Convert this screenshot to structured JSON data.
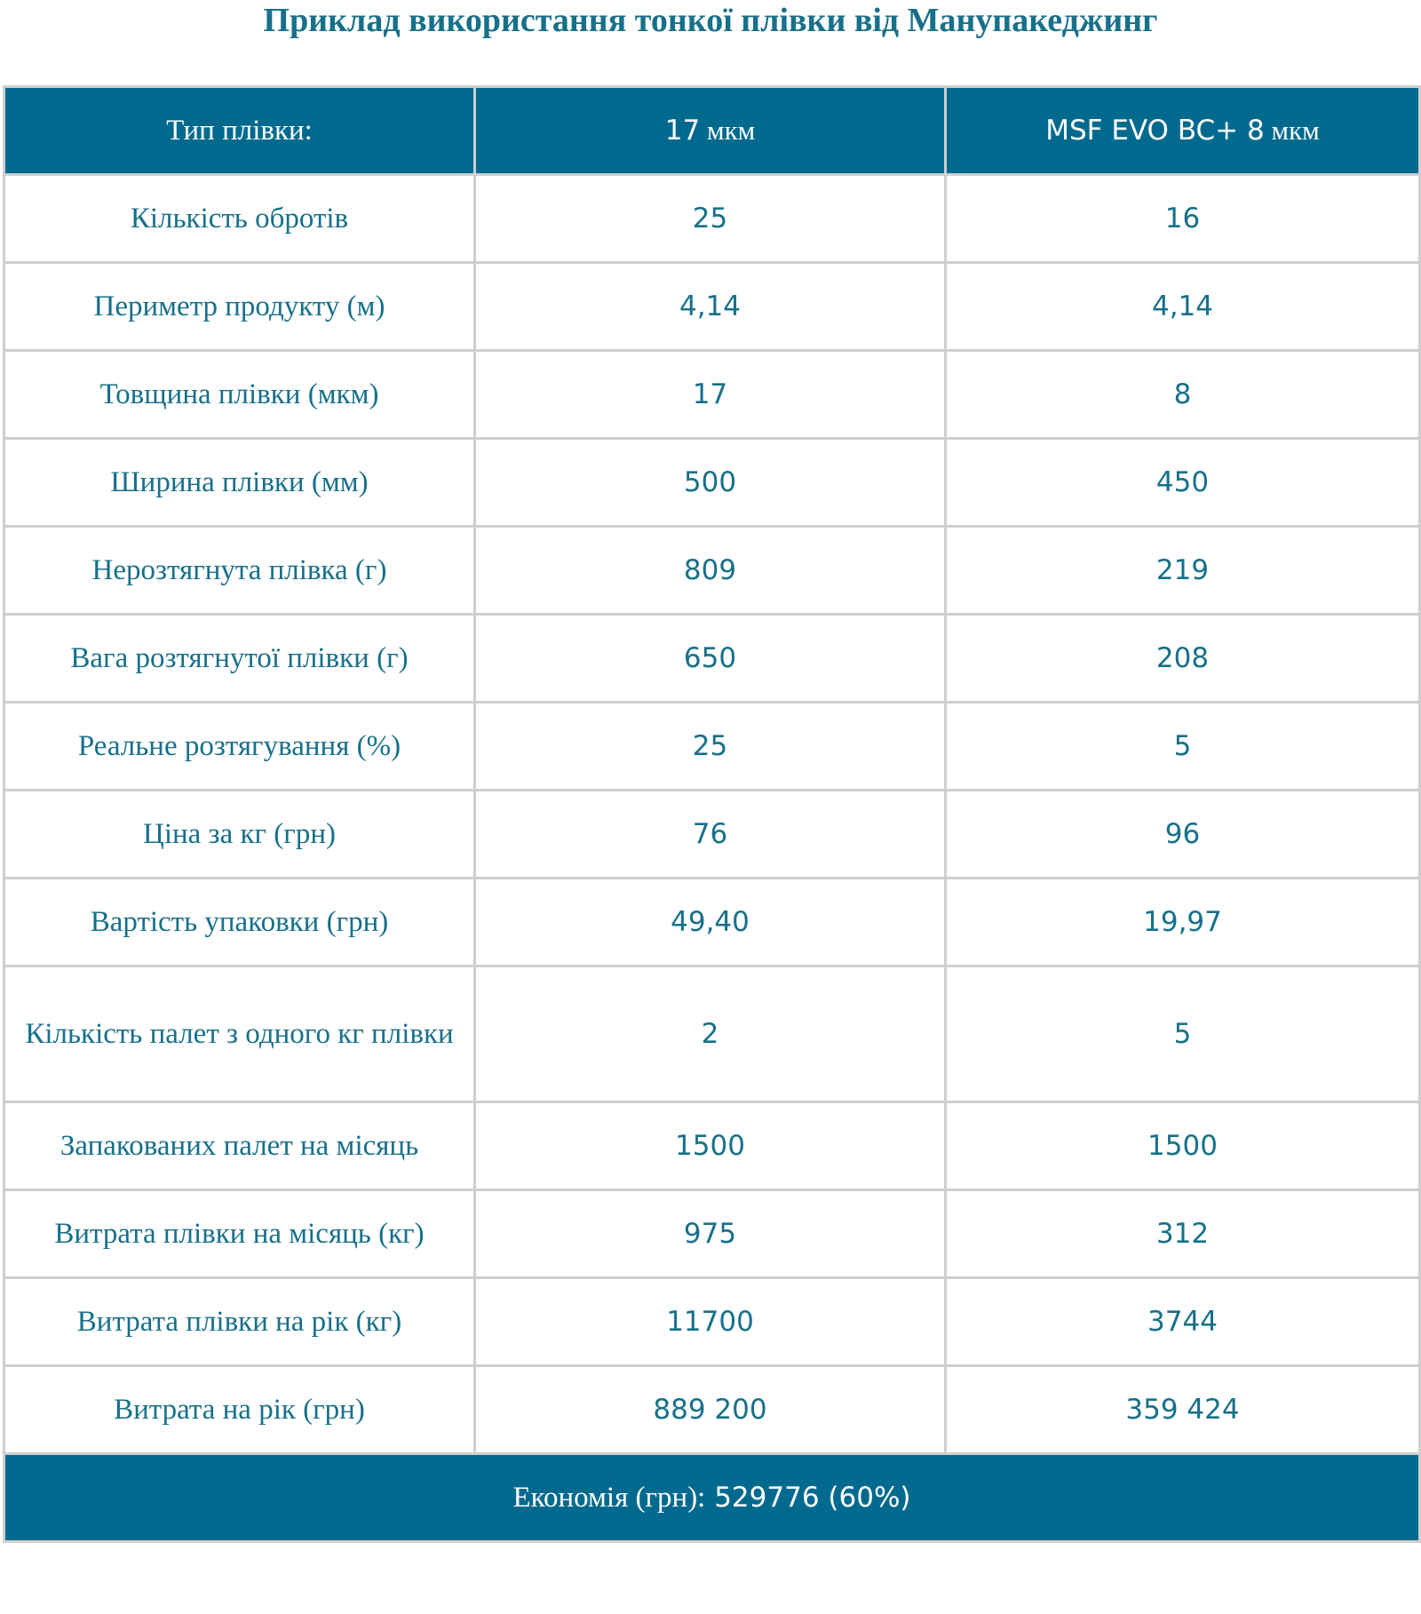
{
  "title": "Приклад використання тонкої плівки від Манупакеджинг",
  "table": {
    "header": {
      "label": "Тип плівки:",
      "col1": {
        "value": "17",
        "unit": " мкм"
      },
      "col2": {
        "value": "MSF EVO BC+ 8",
        "unit": " мкм"
      }
    },
    "rows": [
      {
        "label": "Кількість обротів",
        "col1": "25",
        "col2": "16"
      },
      {
        "label": "Периметр продукту (м)",
        "col1": "4,14",
        "col2": "4,14"
      },
      {
        "label": "Товщина плівки (мкм)",
        "col1": "17",
        "col2": "8"
      },
      {
        "label": "Ширина плівки (мм)",
        "col1": "500",
        "col2": "450"
      },
      {
        "label": "Нерозтягнута плівка (г)",
        "col1": "809",
        "col2": "219"
      },
      {
        "label": "Вага розтягнутої плівки (г)",
        "col1": "650",
        "col2": "208"
      },
      {
        "label": "Реальне розтягування (%)",
        "col1": "25",
        "col2": "5"
      },
      {
        "label": "Ціна за кг (грн)",
        "col1": "76",
        "col2": "96"
      },
      {
        "label": "Вартість упаковки (грн)",
        "col1": "49,40",
        "col2": "19,97"
      },
      {
        "label": "Кількість палет з одного кг плівки",
        "col1": "2",
        "col2": "5"
      },
      {
        "label": "Запакованих палет на місяць",
        "col1": "1500",
        "col2": "1500"
      },
      {
        "label": "Витрата плівки на місяць (кг)",
        "col1": "975",
        "col2": "312"
      },
      {
        "label": "Витрата плівки на рік (кг)",
        "col1": "11700",
        "col2": "3744"
      },
      {
        "label": "Витрата на рік (грн)",
        "col1": "889 200",
        "col2": "359 424"
      }
    ],
    "footer": {
      "label": "Економія (грн):",
      "value": " 529776 (60%)"
    }
  }
}
